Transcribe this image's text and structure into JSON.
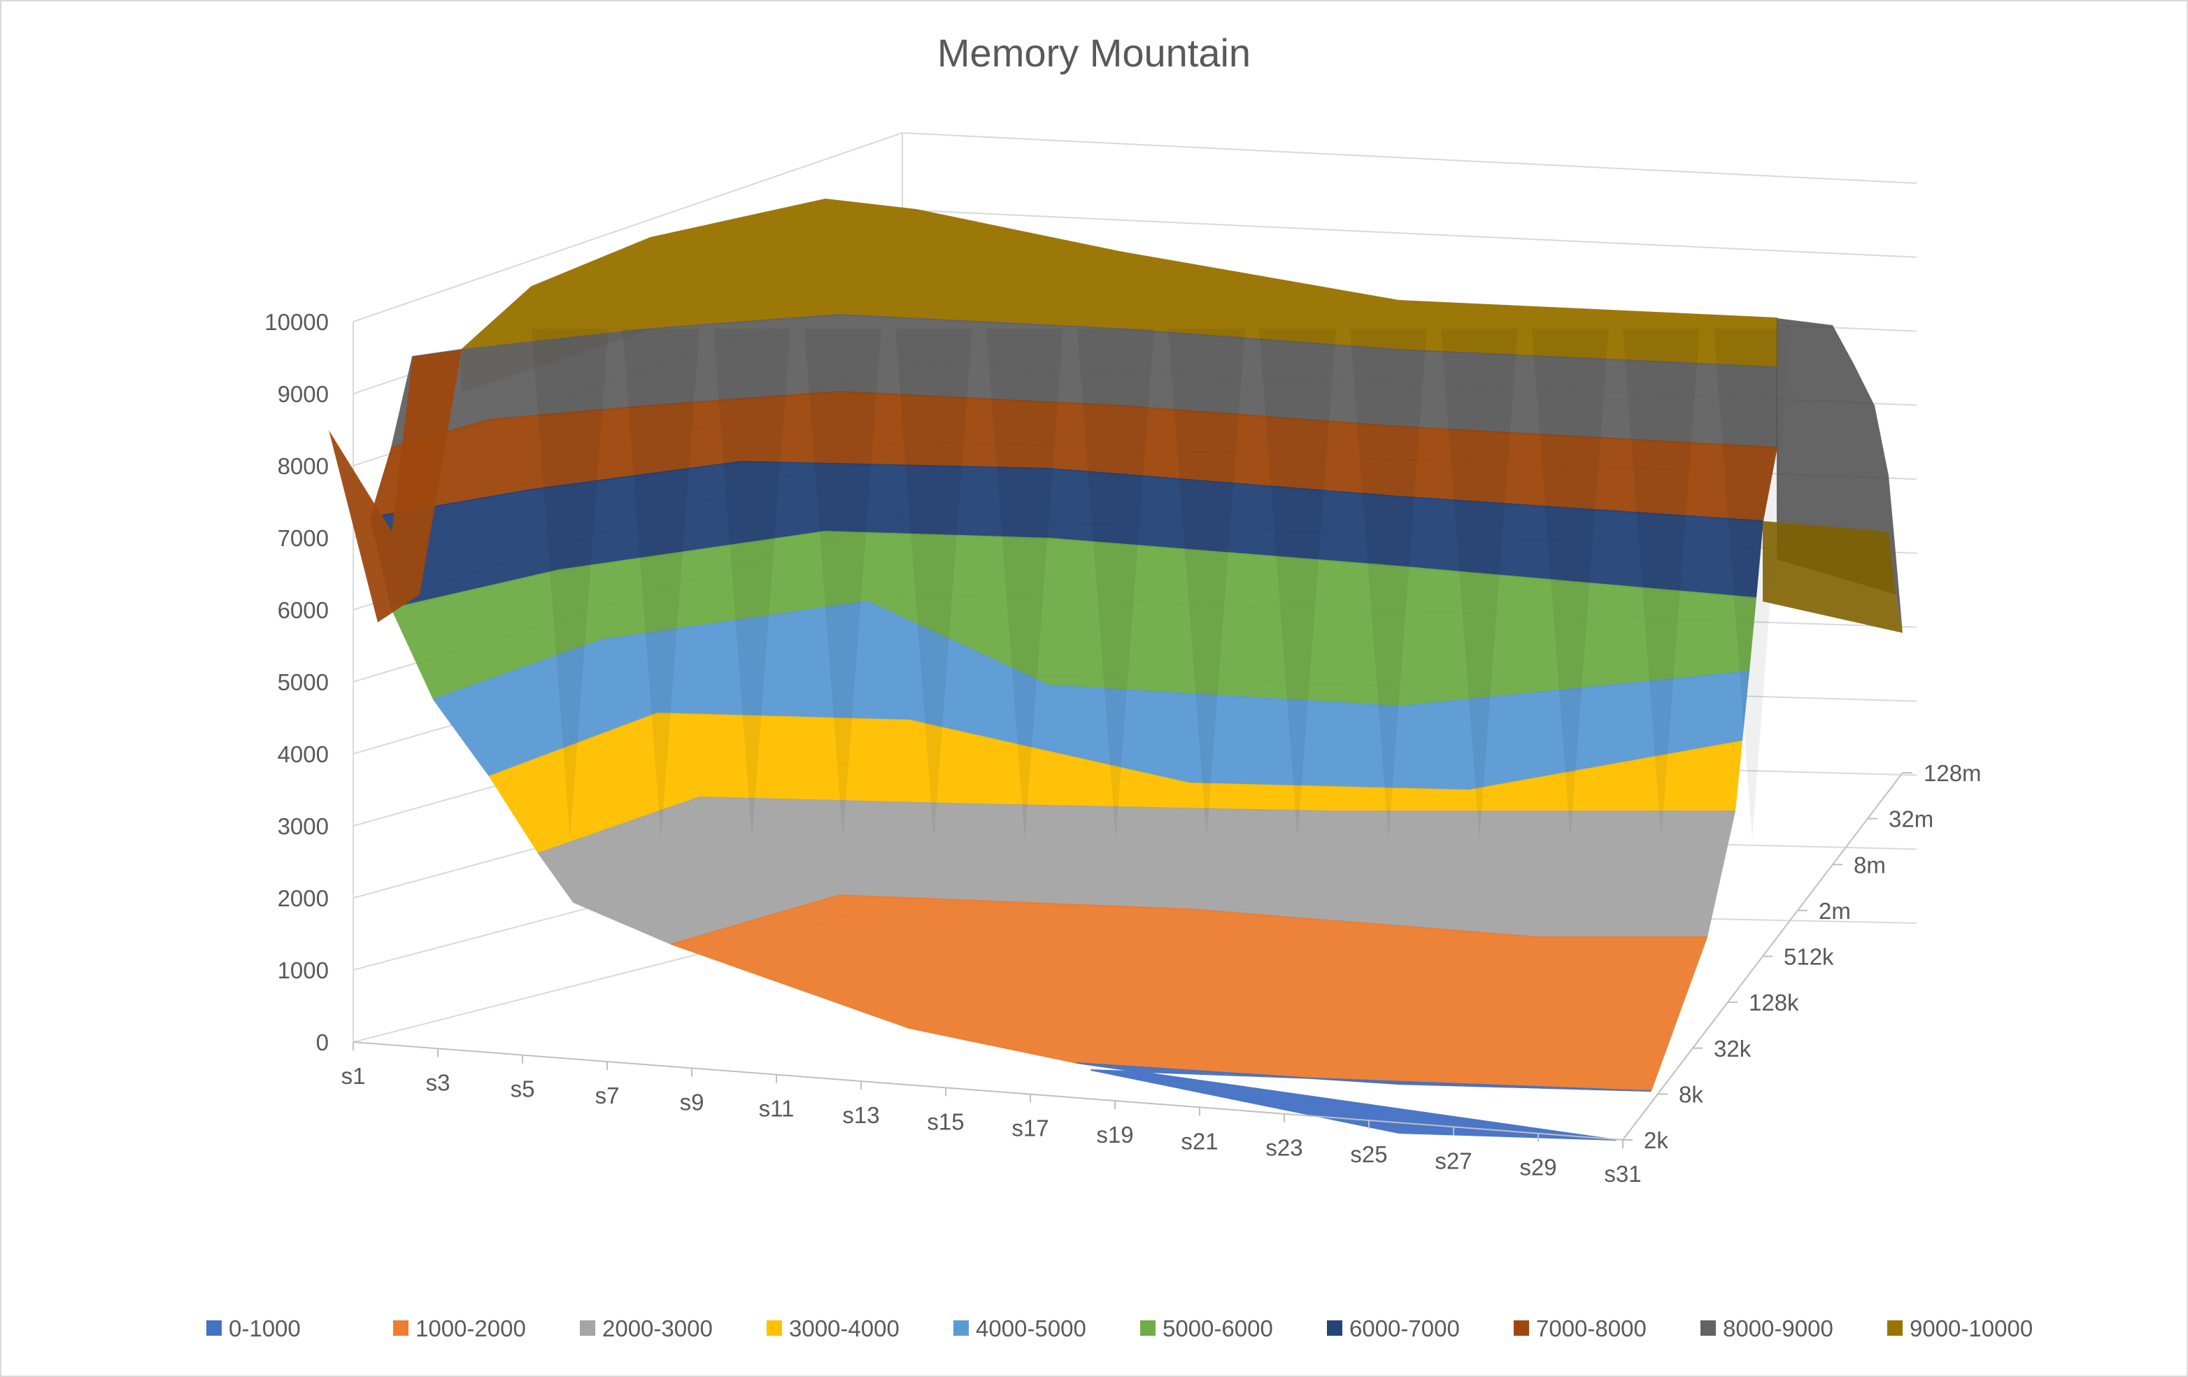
{
  "chart_data": {
    "type": "surface",
    "title": "Memory Mountain",
    "z_axis": {
      "ticks": [
        "0",
        "1000",
        "2000",
        "3000",
        "4000",
        "5000",
        "6000",
        "7000",
        "8000",
        "9000",
        "10000"
      ],
      "range": [
        0,
        10000
      ]
    },
    "stride_axis": {
      "ticks": [
        "s1",
        "s3",
        "s5",
        "s7",
        "s9",
        "s11",
        "s13",
        "s15",
        "s17",
        "s19",
        "s21",
        "s23",
        "s25",
        "s27",
        "s29",
        "s31"
      ]
    },
    "size_axis": {
      "ticks": [
        "2k",
        "8k",
        "32k",
        "128k",
        "512k",
        "2m",
        "8m",
        "32m",
        "128m"
      ]
    },
    "bands": [
      {
        "name": "0-1000",
        "color": "#4472c4"
      },
      {
        "name": "1000-2000",
        "color": "#ed7d31"
      },
      {
        "name": "2000-3000",
        "color": "#a5a5a5"
      },
      {
        "name": "3000-4000",
        "color": "#ffc000"
      },
      {
        "name": "4000-5000",
        "color": "#5b9bd5"
      },
      {
        "name": "5000-6000",
        "color": "#70ad47"
      },
      {
        "name": "6000-7000",
        "color": "#264478"
      },
      {
        "name": "7000-8000",
        "color": "#9e480e"
      },
      {
        "name": "8000-9000",
        "color": "#636363"
      },
      {
        "name": "9000-10000",
        "color": "#997300"
      }
    ],
    "surface_strips": [
      {
        "band": 9,
        "top": [
          [
            660,
            500
          ],
          [
            760,
            410
          ],
          [
            930,
            340
          ],
          [
            1180,
            285
          ],
          [
            1310,
            300
          ],
          [
            1600,
            360
          ],
          [
            2000,
            430
          ],
          [
            2540,
            455
          ]
        ],
        "bottom": [
          [
            660,
            560
          ],
          [
            930,
            470
          ],
          [
            1200,
            450
          ],
          [
            1600,
            470
          ],
          [
            2000,
            500
          ],
          [
            2540,
            525
          ]
        ]
      },
      {
        "band": 8,
        "top": [
          [
            590,
            510
          ],
          [
            660,
            500
          ],
          [
            930,
            470
          ],
          [
            1200,
            450
          ],
          [
            1600,
            470
          ],
          [
            2000,
            500
          ],
          [
            2540,
            525
          ]
        ],
        "bottom": [
          [
            560,
            640
          ],
          [
            700,
            600
          ],
          [
            930,
            580
          ],
          [
            1200,
            560
          ],
          [
            1600,
            580
          ],
          [
            2000,
            610
          ],
          [
            2540,
            640
          ]
        ]
      },
      {
        "band": 7,
        "top": [
          [
            560,
            640
          ],
          [
            700,
            600
          ],
          [
            930,
            580
          ],
          [
            1200,
            560
          ],
          [
            1600,
            580
          ],
          [
            2000,
            610
          ],
          [
            2540,
            640
          ]
        ],
        "bottom": [
          [
            530,
            740
          ],
          [
            760,
            700
          ],
          [
            1060,
            660
          ],
          [
            1500,
            670
          ],
          [
            2000,
            710
          ],
          [
            2520,
            745
          ]
        ]
      },
      {
        "band": 6,
        "top": [
          [
            530,
            740
          ],
          [
            760,
            700
          ],
          [
            1060,
            660
          ],
          [
            1500,
            670
          ],
          [
            2000,
            710
          ],
          [
            2520,
            745
          ]
        ],
        "bottom": [
          [
            560,
            870
          ],
          [
            800,
            815
          ],
          [
            1180,
            760
          ],
          [
            1500,
            770
          ],
          [
            2000,
            810
          ],
          [
            2510,
            855
          ]
        ]
      },
      {
        "band": 5,
        "top": [
          [
            560,
            870
          ],
          [
            800,
            815
          ],
          [
            1180,
            760
          ],
          [
            1500,
            770
          ],
          [
            2000,
            810
          ],
          [
            2510,
            855
          ]
        ],
        "bottom": [
          [
            620,
            1000
          ],
          [
            860,
            915
          ],
          [
            1240,
            860
          ],
          [
            1500,
            980
          ],
          [
            2000,
            1010
          ],
          [
            2500,
            960
          ]
        ]
      },
      {
        "band": 4,
        "top": [
          [
            620,
            1000
          ],
          [
            860,
            915
          ],
          [
            1240,
            860
          ],
          [
            1500,
            980
          ],
          [
            2000,
            1010
          ],
          [
            2500,
            960
          ]
        ],
        "bottom": [
          [
            700,
            1110
          ],
          [
            940,
            1020
          ],
          [
            1300,
            1030
          ],
          [
            1700,
            1120
          ],
          [
            2100,
            1130
          ],
          [
            2490,
            1060
          ]
        ]
      },
      {
        "band": 3,
        "top": [
          [
            700,
            1110
          ],
          [
            940,
            1020
          ],
          [
            1300,
            1030
          ],
          [
            1700,
            1120
          ],
          [
            2100,
            1130
          ],
          [
            2490,
            1060
          ]
        ],
        "bottom": [
          [
            770,
            1220
          ],
          [
            1000,
            1140
          ],
          [
            1400,
            1150
          ],
          [
            1900,
            1160
          ],
          [
            2480,
            1160
          ]
        ]
      },
      {
        "band": 2,
        "top": [
          [
            770,
            1220
          ],
          [
            1000,
            1140
          ],
          [
            1400,
            1150
          ],
          [
            1900,
            1160
          ],
          [
            2480,
            1160
          ]
        ],
        "bottom": [
          [
            820,
            1290
          ],
          [
            960,
            1350
          ],
          [
            1200,
            1280
          ],
          [
            1700,
            1300
          ],
          [
            2200,
            1340
          ],
          [
            2440,
            1340
          ]
        ]
      },
      {
        "band": 1,
        "top": [
          [
            960,
            1350
          ],
          [
            1200,
            1280
          ],
          [
            1700,
            1300
          ],
          [
            2200,
            1340
          ],
          [
            2440,
            1340
          ]
        ],
        "bottom": [
          [
            1300,
            1470
          ],
          [
            1540,
            1520
          ],
          [
            2000,
            1550
          ],
          [
            2360,
            1560
          ]
        ]
      },
      {
        "band": 0,
        "top": [
          [
            1540,
            1520
          ],
          [
            2000,
            1550
          ],
          [
            2360,
            1560
          ]
        ],
        "bottom": [
          [
            2310,
            1630
          ],
          [
            2000,
            1620
          ],
          [
            1560,
            1530
          ]
        ]
      }
    ]
  }
}
